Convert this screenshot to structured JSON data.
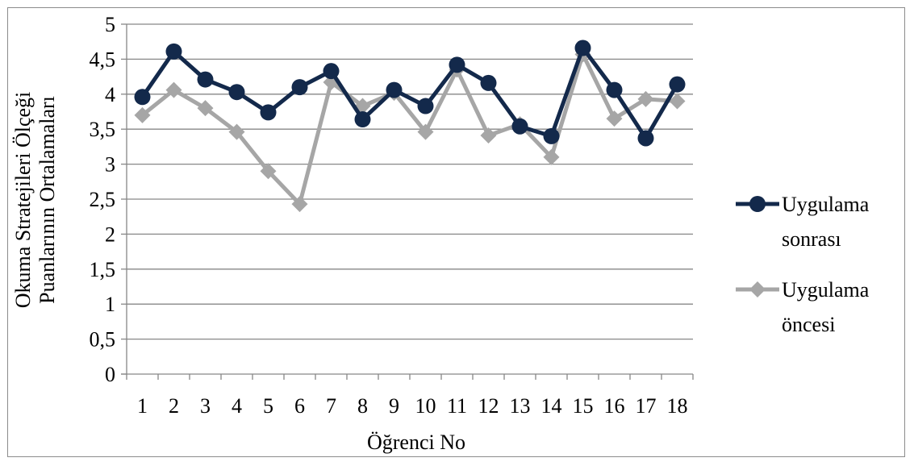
{
  "chart_data": {
    "type": "line",
    "title": "",
    "xlabel": "Öğrenci No",
    "ylabel_lines": [
      "Okuma  Stratejileri Ölçeği",
      "Puanlarının Ortalamaları"
    ],
    "x": [
      "1",
      "2",
      "3",
      "4",
      "5",
      "6",
      "7",
      "8",
      "9",
      "10",
      "11",
      "12",
      "13",
      "14",
      "15",
      "16",
      "17",
      "18"
    ],
    "y_ticks": [
      "0",
      "0,5",
      "1",
      "1,5",
      "2",
      "2,5",
      "3",
      "3,5",
      "4",
      "4,5",
      "5"
    ],
    "ylim": [
      0,
      5
    ],
    "grid": true,
    "legend_position": "right",
    "series": [
      {
        "name_lines": [
          "Uygulama",
          "sonrası"
        ],
        "color": "#13294b",
        "marker": "circle",
        "values": [
          3.96,
          4.61,
          4.21,
          4.03,
          3.74,
          4.1,
          4.33,
          3.64,
          4.06,
          3.83,
          4.42,
          4.16,
          3.54,
          3.4,
          4.66,
          4.06,
          3.37,
          4.14
        ]
      },
      {
        "name_lines": [
          "Uygulama",
          "öncesi"
        ],
        "color": "#a6a6a6",
        "marker": "diamond",
        "values": [
          3.7,
          4.06,
          3.8,
          3.46,
          2.9,
          2.43,
          4.17,
          3.83,
          4.02,
          3.46,
          4.35,
          3.41,
          3.57,
          3.1,
          4.57,
          3.65,
          3.93,
          3.9
        ]
      }
    ]
  }
}
